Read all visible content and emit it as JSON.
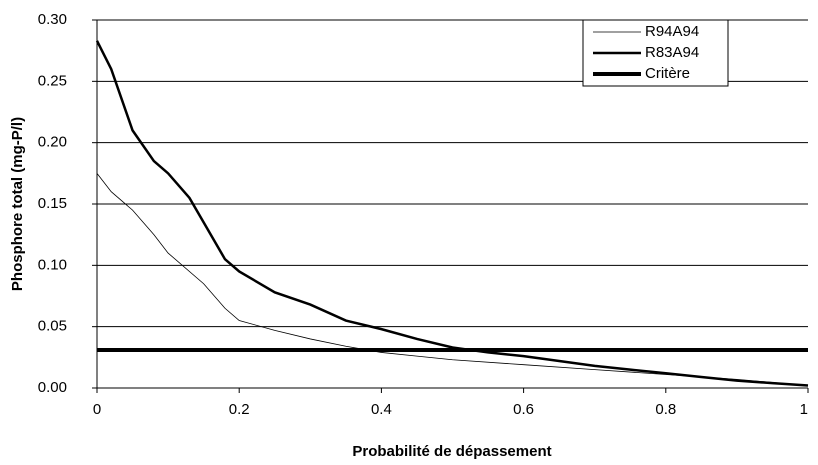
{
  "chart_data": {
    "type": "line",
    "x_label": "Probabilité de dépassement",
    "y_label": "Phosphore total (mg-P/l)",
    "xlim": [
      0,
      1
    ],
    "xticks": [
      0,
      0.2,
      0.4,
      0.6,
      0.8,
      1
    ],
    "ylim": [
      0,
      0.3
    ],
    "yticks": [
      {
        "value": 0,
        "label": "0.00"
      },
      {
        "value": 0.05,
        "label": "0.05"
      },
      {
        "value": 0.1,
        "label": "0.10"
      },
      {
        "value": 0.15,
        "label": "0.15"
      },
      {
        "value": 0.2,
        "label": "0.20"
      },
      {
        "value": 0.25,
        "label": "0.25"
      },
      {
        "value": 0.3,
        "label": "0.30"
      }
    ],
    "grid": true,
    "legend": "upper right",
    "series": [
      {
        "name": "R94A94",
        "color": "#000000",
        "x": [
          0,
          0.02,
          0.05,
          0.08,
          0.1,
          0.15,
          0.18,
          0.2,
          0.25,
          0.3,
          0.35,
          0.4,
          0.45,
          0.5,
          0.6,
          0.7,
          0.8,
          0.9,
          1
        ],
        "values": [
          0.175,
          0.16,
          0.145,
          0.125,
          0.11,
          0.085,
          0.065,
          0.055,
          0.047,
          0.04,
          0.034,
          0.029,
          0.026,
          0.023,
          0.019,
          0.015,
          0.011,
          0.007,
          0.002
        ]
      },
      {
        "name": "R83A94",
        "color": "#000000",
        "x": [
          0,
          0.02,
          0.05,
          0.08,
          0.1,
          0.13,
          0.15,
          0.18,
          0.2,
          0.25,
          0.3,
          0.35,
          0.4,
          0.45,
          0.5,
          0.55,
          0.6,
          0.65,
          0.7,
          0.75,
          0.8,
          0.85,
          0.9,
          0.95,
          1
        ],
        "values": [
          0.283,
          0.26,
          0.21,
          0.185,
          0.175,
          0.155,
          0.135,
          0.105,
          0.095,
          0.078,
          0.068,
          0.055,
          0.048,
          0.04,
          0.033,
          0.029,
          0.026,
          0.022,
          0.018,
          0.015,
          0.012,
          0.009,
          0.006,
          0.004,
          0.002
        ]
      },
      {
        "name": "Critère",
        "color": "#000000",
        "x": [
          0,
          1
        ],
        "values": [
          0.031,
          0.031
        ]
      }
    ]
  }
}
